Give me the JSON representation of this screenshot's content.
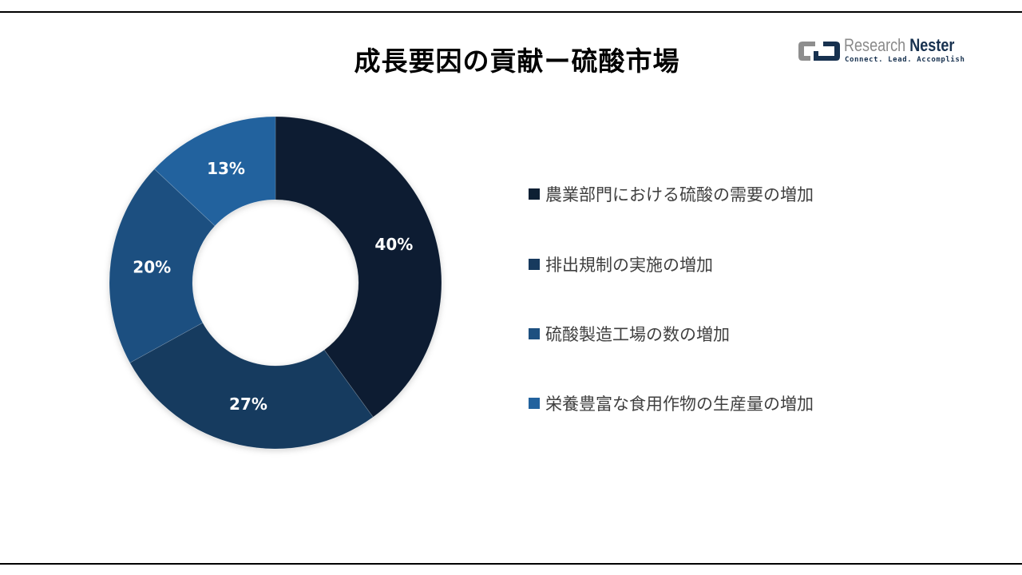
{
  "title": "成長要因の貢献ー硫酸市場",
  "logo": {
    "name_part1": "Research",
    "name_part2": "Nester",
    "tagline": "Connect. Lead. Accomplish",
    "icon": "chain-link-logo-icon"
  },
  "chart_data": {
    "type": "pie",
    "variant": "donut",
    "title": "成長要因の貢献ー硫酸市場",
    "categories": [
      "農業部門における硫酸の需要の増加",
      "排出規制の実施の増加",
      "硫酸製造工場の数の増加",
      "栄養豊富な食用作物の生産量の増加"
    ],
    "values": [
      40,
      27,
      20,
      13
    ],
    "labels": [
      "40%",
      "27%",
      "20%",
      "13%"
    ],
    "colors": [
      "#0d1f33",
      "#173a5e",
      "#1d5080",
      "#22629e"
    ],
    "start_angle": "12 o'clock, clockwise",
    "legend_position": "right"
  },
  "legend": {
    "items": [
      {
        "label": "農業部門における硫酸の需要の増加",
        "color": "#0d1f33"
      },
      {
        "label": "排出規制の実施の増加",
        "color": "#173a5e"
      },
      {
        "label": "硫酸製造工場の数の増加",
        "color": "#1d5080"
      },
      {
        "label": "栄養豊富な食用作物の生産量の増加",
        "color": "#22629e"
      }
    ]
  }
}
